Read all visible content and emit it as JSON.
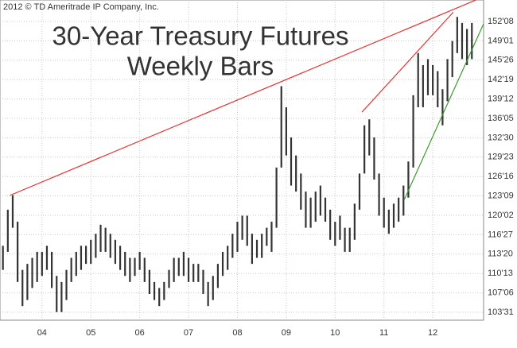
{
  "chart_data": {
    "type": "range",
    "title_lines": [
      "30-Year Treasury Futures",
      "Weekly Bars"
    ],
    "source": "2012 © TD Ameritrade IP Company, Inc.",
    "color": "#333333",
    "x": [
      2003.2,
      2003.3,
      2003.4,
      2003.5,
      2003.6,
      2003.7,
      2003.8,
      2003.9,
      2004.0,
      2004.1,
      2004.2,
      2004.3,
      2004.4,
      2004.5,
      2004.6,
      2004.7,
      2004.8,
      2004.9,
      2005.0,
      2005.1,
      2005.2,
      2005.3,
      2005.4,
      2005.5,
      2005.6,
      2005.7,
      2005.8,
      2005.9,
      2006.0,
      2006.1,
      2006.2,
      2006.3,
      2006.4,
      2006.5,
      2006.6,
      2006.7,
      2006.8,
      2006.9,
      2007.0,
      2007.1,
      2007.2,
      2007.3,
      2007.4,
      2007.5,
      2007.6,
      2007.7,
      2007.8,
      2007.9,
      2008.0,
      2008.1,
      2008.2,
      2008.3,
      2008.4,
      2008.5,
      2008.6,
      2008.7,
      2008.8,
      2008.9,
      2009.0,
      2009.1,
      2009.2,
      2009.3,
      2009.4,
      2009.5,
      2009.6,
      2009.7,
      2009.8,
      2009.9,
      2010.0,
      2010.1,
      2010.2,
      2010.3,
      2010.4,
      2010.5,
      2010.6,
      2010.7,
      2010.8,
      2010.9,
      2011.0,
      2011.1,
      2011.2,
      2011.3,
      2011.4,
      2011.5,
      2011.6,
      2011.7,
      2011.8,
      2011.9,
      2012.0,
      2012.1,
      2012.2,
      2012.3,
      2012.4,
      2012.5,
      2012.6,
      2012.7,
      2012.8
    ],
    "low": [
      111,
      114,
      118,
      109,
      105,
      106,
      108,
      109,
      110,
      111,
      108,
      104,
      104,
      106,
      109,
      110,
      111,
      112,
      112,
      113,
      114,
      114,
      113,
      112,
      111,
      110,
      109,
      110,
      111,
      109,
      107,
      106,
      105,
      106,
      108,
      109,
      110,
      110,
      109,
      109,
      109,
      107,
      105,
      106,
      108,
      110,
      111,
      113,
      114,
      116,
      115,
      112,
      113,
      113,
      115,
      114,
      118,
      128,
      130,
      125,
      124,
      121,
      118,
      118,
      119,
      120,
      119,
      116,
      115,
      116,
      114,
      114,
      116,
      121,
      127,
      130,
      126,
      120,
      118,
      117,
      118,
      119,
      120,
      123,
      128,
      138,
      138,
      140,
      140,
      138,
      135,
      139,
      143,
      147,
      146,
      145,
      146
    ],
    "high": [
      115,
      121,
      123.4,
      119,
      111,
      112,
      113,
      114,
      114,
      115,
      114,
      110,
      109,
      111,
      113,
      114,
      115,
      115,
      116,
      117,
      118.5,
      118,
      117,
      116,
      115,
      114,
      113,
      113,
      114,
      113,
      111,
      109,
      108,
      109,
      111,
      113,
      113,
      114,
      113,
      112,
      112,
      111,
      109,
      110,
      112,
      114,
      115,
      117,
      119,
      120,
      120,
      117,
      116,
      117,
      118,
      119,
      128,
      141.5,
      138,
      133,
      130,
      127,
      124,
      123,
      124,
      125,
      123,
      121,
      119,
      120,
      118,
      118,
      122,
      127,
      135,
      136,
      133,
      127,
      123,
      121,
      122,
      123,
      125,
      129,
      140,
      147,
      145,
      146,
      145,
      144,
      141,
      146,
      149,
      153,
      152,
      151,
      152
    ],
    "lines": [
      {
        "color": "#e8302e",
        "x": [
          2003.34,
          2012.88
        ],
        "y": [
          123.36,
          155.8
        ]
      },
      {
        "color": "#e8302e",
        "x": [
          2010.55,
          2012.42
        ],
        "y": [
          137.2,
          153.8
        ]
      },
      {
        "color": "#3a9b2e",
        "x": [
          2011.41,
          2013.04
        ],
        "y": [
          122.56,
          151.85
        ]
      }
    ],
    "xlim": [
      2003.14,
      2013.04
    ],
    "xticks": [
      {
        "value": 2004,
        "label": "04"
      },
      {
        "value": 2005,
        "label": "05"
      },
      {
        "value": 2006,
        "label": "06"
      },
      {
        "value": 2007,
        "label": "07"
      },
      {
        "value": 2008,
        "label": "08"
      },
      {
        "value": 2009,
        "label": "09"
      },
      {
        "value": 2010,
        "label": "10"
      },
      {
        "value": 2011,
        "label": "11"
      },
      {
        "value": 2012,
        "label": "12"
      }
    ],
    "ylim": [
      102.65,
      155.81
    ],
    "yticks": [
      {
        "value": 103.96875,
        "label": "103'31"
      },
      {
        "value": 107.1875,
        "label": "107'06"
      },
      {
        "value": 110.40625,
        "label": "110'13"
      },
      {
        "value": 113.625,
        "label": "113'20"
      },
      {
        "value": 116.84375,
        "label": "116'27"
      },
      {
        "value": 120.0625,
        "label": "120'02"
      },
      {
        "value": 123.28125,
        "label": "123'09"
      },
      {
        "value": 126.5,
        "label": "126'16"
      },
      {
        "value": 129.71875,
        "label": "129'23"
      },
      {
        "value": 132.9375,
        "label": "132'30"
      },
      {
        "value": 136.15625,
        "label": "136'05"
      },
      {
        "value": 139.375,
        "label": "139'12"
      },
      {
        "value": 142.59375,
        "label": "142'19"
      },
      {
        "value": 145.8125,
        "label": "145'26"
      },
      {
        "value": 149.03125,
        "label": "149'01"
      },
      {
        "value": 152.25,
        "label": "152'08"
      }
    ],
    "grid": true
  }
}
